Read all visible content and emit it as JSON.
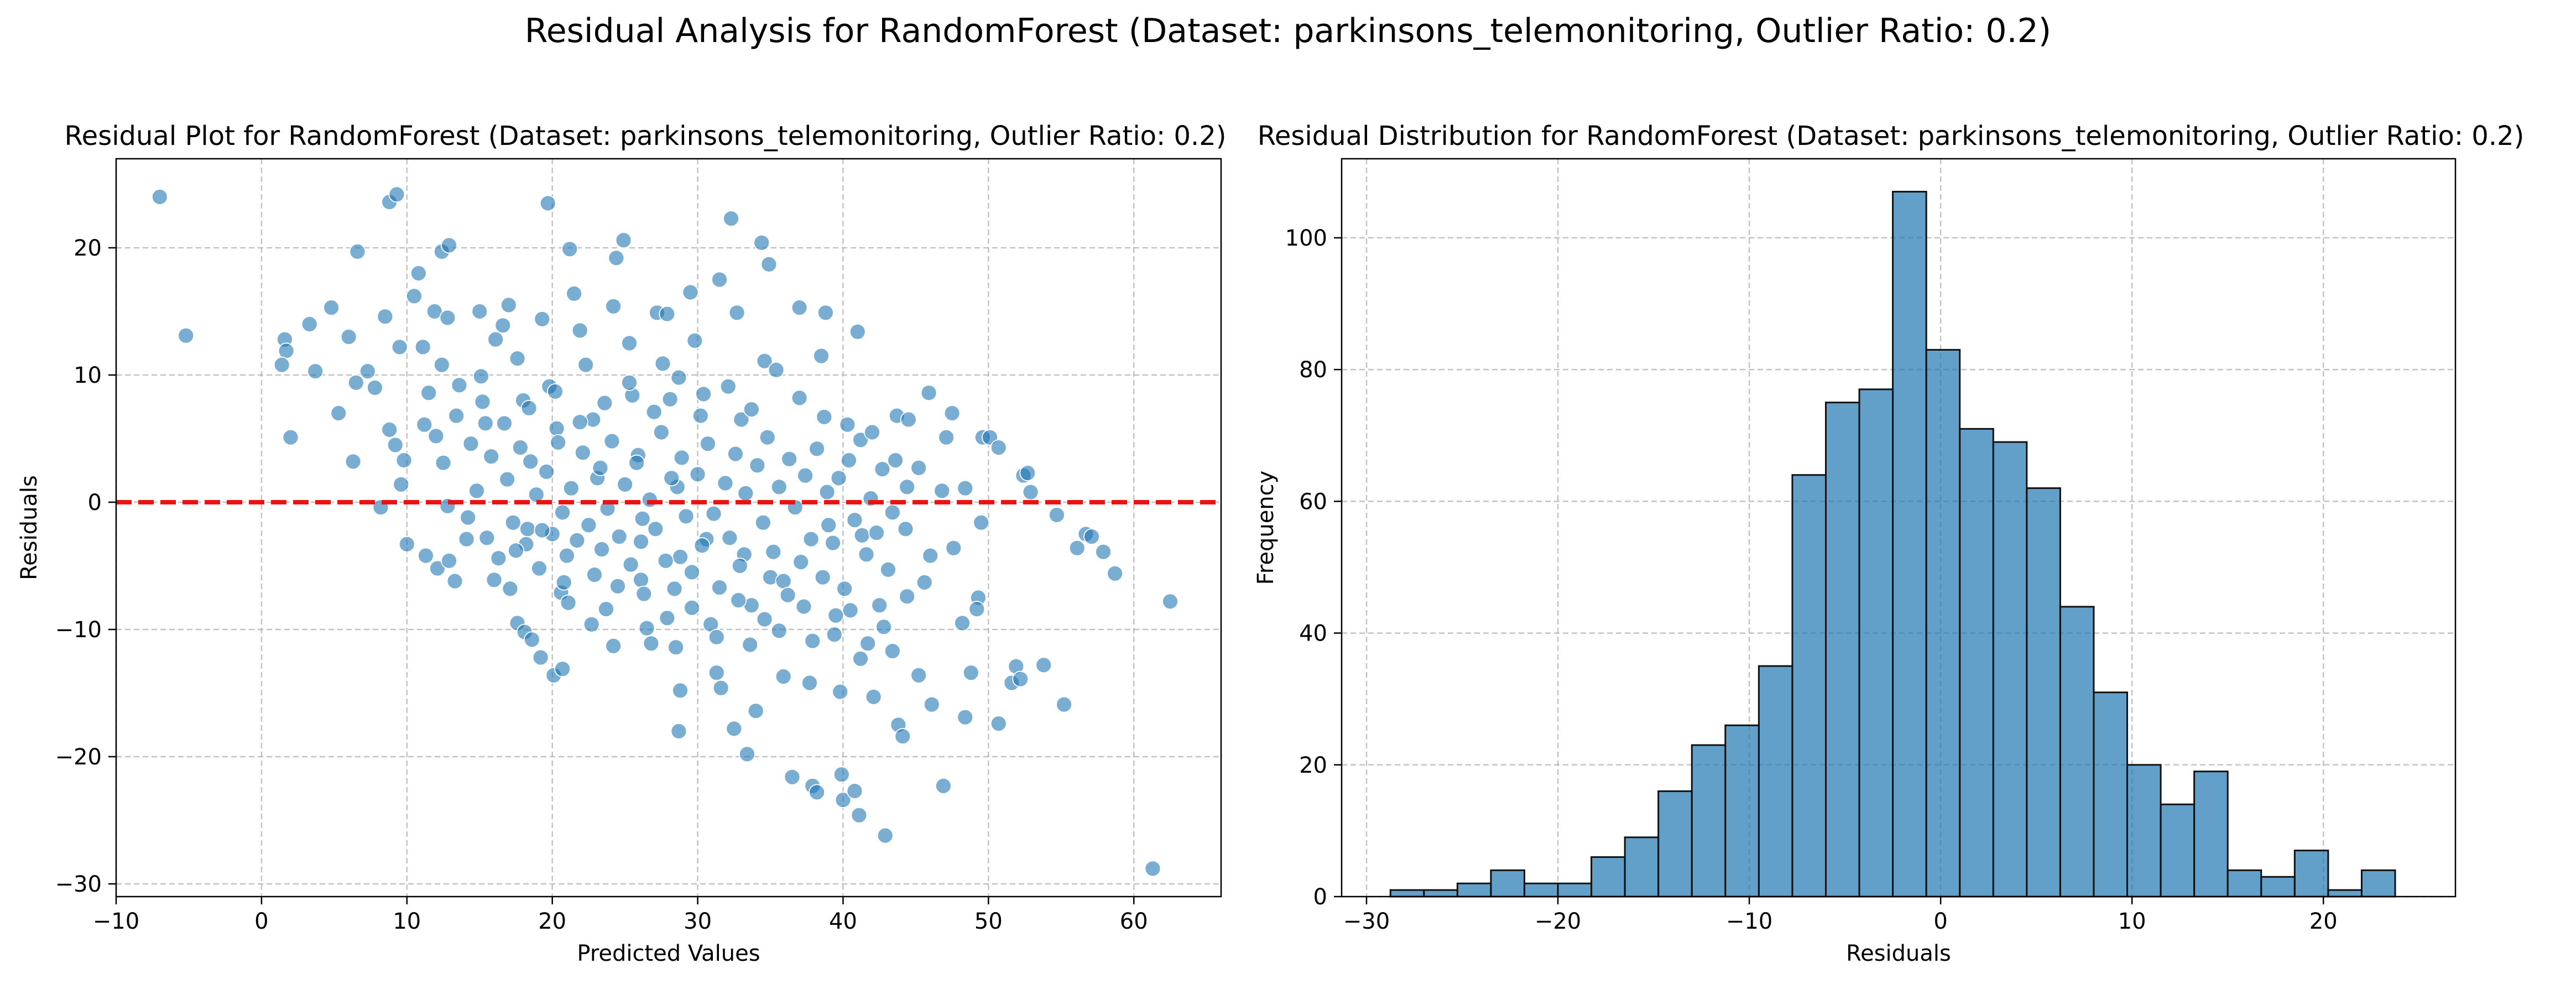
{
  "figure_title": "Residual Analysis for RandomForest (Dataset: parkinsons_telemonitoring, Outlier Ratio: 0.2)",
  "chart_data": [
    {
      "type": "scatter",
      "title": "Residual Plot for RandomForest (Dataset: parkinsons_telemonitoring, Outlier Ratio: 0.2)",
      "xlabel": "Predicted Values",
      "ylabel": "Residuals",
      "xlim": [
        -10,
        66
      ],
      "ylim": [
        -31,
        27
      ],
      "xticks": [
        -10,
        0,
        10,
        20,
        30,
        40,
        50,
        60
      ],
      "yticks": [
        -30,
        -20,
        -10,
        0,
        10,
        20
      ],
      "xtick_labels": [
        "−10",
        "0",
        "10",
        "20",
        "30",
        "40",
        "50",
        "60"
      ],
      "ytick_labels": [
        "−30",
        "−20",
        "−10",
        "0",
        "10",
        "20"
      ],
      "grid": true,
      "reference_line": {
        "y": 0,
        "color": "#ee1111",
        "style": "dashed"
      },
      "color": "#1f77b4",
      "points": [
        [
          -7,
          24
        ],
        [
          -5.2,
          13.1
        ],
        [
          1.6,
          12.8
        ],
        [
          1.7,
          11.9
        ],
        [
          1.4,
          10.8
        ],
        [
          2,
          5.1
        ],
        [
          3.3,
          14
        ],
        [
          3.7,
          10.3
        ],
        [
          4.8,
          15.3
        ],
        [
          5.3,
          7
        ],
        [
          6,
          13
        ],
        [
          6.6,
          19.7
        ],
        [
          6.3,
          3.2
        ],
        [
          6.5,
          9.4
        ],
        [
          7.3,
          10.3
        ],
        [
          7.8,
          9
        ],
        [
          8.5,
          14.6
        ],
        [
          8.8,
          23.6
        ],
        [
          9.3,
          24.2
        ],
        [
          9.5,
          12.2
        ],
        [
          8.8,
          5.7
        ],
        [
          9.2,
          4.5
        ],
        [
          9.6,
          1.4
        ],
        [
          8.2,
          -0.4
        ],
        [
          9.8,
          3.3
        ],
        [
          10.5,
          16.2
        ],
        [
          10.8,
          18
        ],
        [
          11.1,
          12.2
        ],
        [
          11.5,
          8.6
        ],
        [
          11.9,
          15
        ],
        [
          12,
          5.2
        ],
        [
          12.4,
          19.7
        ],
        [
          12.9,
          20.2
        ],
        [
          12.8,
          14.5
        ],
        [
          12.4,
          10.8
        ],
        [
          10,
          -3.3
        ],
        [
          11.3,
          -4.2
        ],
        [
          12.1,
          -5.2
        ],
        [
          12.9,
          -4.6
        ],
        [
          13.3,
          -6.2
        ],
        [
          14.1,
          -2.9
        ],
        [
          15,
          15
        ],
        [
          15.1,
          9.9
        ],
        [
          15.4,
          6.2
        ],
        [
          16.1,
          12.8
        ],
        [
          16.6,
          13.9
        ],
        [
          17,
          15.5
        ],
        [
          17.6,
          11.3
        ],
        [
          18,
          8
        ],
        [
          18.5,
          3.2
        ],
        [
          18.3,
          -2.1
        ],
        [
          17.1,
          -6.8
        ],
        [
          17.6,
          -9.5
        ],
        [
          18.1,
          -10.2
        ],
        [
          18.6,
          -10.8
        ],
        [
          19.2,
          -12.2
        ],
        [
          19.7,
          23.5
        ],
        [
          19.3,
          14.4
        ],
        [
          19.8,
          9.1
        ],
        [
          20.3,
          5.8
        ],
        [
          20.7,
          -0.8
        ],
        [
          21,
          -4.2
        ],
        [
          20.6,
          -7.1
        ],
        [
          20.1,
          -13.6
        ],
        [
          20.7,
          -13.1
        ],
        [
          21.2,
          19.9
        ],
        [
          21.5,
          16.4
        ],
        [
          21.9,
          13.5
        ],
        [
          22.3,
          10.8
        ],
        [
          22.8,
          6.5
        ],
        [
          23.1,
          1.9
        ],
        [
          23.4,
          -3.7
        ],
        [
          23.7,
          -8.4
        ],
        [
          24.2,
          -11.3
        ],
        [
          24.2,
          15.4
        ],
        [
          24.4,
          19.2
        ],
        [
          24.9,
          20.6
        ],
        [
          25.3,
          12.5
        ],
        [
          25.5,
          8.4
        ],
        [
          25.9,
          3.7
        ],
        [
          26.2,
          -1.3
        ],
        [
          26.1,
          -6.1
        ],
        [
          26.5,
          -9.9
        ],
        [
          26.8,
          -11.1
        ],
        [
          27.2,
          14.9
        ],
        [
          27.6,
          10.9
        ],
        [
          27.9,
          14.8
        ],
        [
          28.1,
          8.1
        ],
        [
          28.6,
          1.2
        ],
        [
          28.8,
          -4.3
        ],
        [
          28.5,
          -11.4
        ],
        [
          28.8,
          -14.8
        ],
        [
          28.7,
          -18
        ],
        [
          29.5,
          16.5
        ],
        [
          29.8,
          12.7
        ],
        [
          30.2,
          6.8
        ],
        [
          30.6,
          -2.9
        ],
        [
          30.9,
          -9.6
        ],
        [
          31.3,
          -13.4
        ],
        [
          31.5,
          17.5
        ],
        [
          31.6,
          -14.6
        ],
        [
          32.3,
          22.3
        ],
        [
          32.5,
          -17.8
        ],
        [
          32.7,
          14.9
        ],
        [
          33,
          6.5
        ],
        [
          33.2,
          -4.1
        ],
        [
          33.6,
          -11.2
        ],
        [
          33.4,
          -19.8
        ],
        [
          34,
          -16.4
        ],
        [
          34.4,
          20.4
        ],
        [
          34.6,
          11.1
        ],
        [
          34.9,
          18.7
        ],
        [
          35,
          -5.9
        ],
        [
          35.6,
          -10.1
        ],
        [
          35.9,
          -13.7
        ],
        [
          36.5,
          -21.6
        ],
        [
          37,
          15.3
        ],
        [
          37.3,
          -8.2
        ],
        [
          37.7,
          -14.2
        ],
        [
          37.9,
          -22.3
        ],
        [
          38.2,
          -22.8
        ],
        [
          38.5,
          11.5
        ],
        [
          38.8,
          14.9
        ],
        [
          39,
          -1.8
        ],
        [
          39.4,
          -10.4
        ],
        [
          39.8,
          -14.9
        ],
        [
          39.9,
          -21.4
        ],
        [
          40,
          -23.4
        ],
        [
          40.5,
          -8.5
        ],
        [
          40.8,
          -22.7
        ],
        [
          41.1,
          -24.6
        ],
        [
          41,
          13.4
        ],
        [
          41.3,
          -2.6
        ],
        [
          41.7,
          -11.1
        ],
        [
          42.1,
          -15.3
        ],
        [
          42.5,
          -8.1
        ],
        [
          42.9,
          -26.2
        ],
        [
          43.4,
          -11.7
        ],
        [
          43.8,
          -17.5
        ],
        [
          44.1,
          -18.4
        ],
        [
          44.4,
          1.2
        ],
        [
          44.3,
          -2.1
        ],
        [
          43.7,
          6.8
        ],
        [
          44.5,
          6.5
        ],
        [
          45.2,
          -13.6
        ],
        [
          45.6,
          -6.3
        ],
        [
          45.9,
          8.6
        ],
        [
          46.1,
          -15.9
        ],
        [
          46.9,
          -22.3
        ],
        [
          47.1,
          5.1
        ],
        [
          47.5,
          7
        ],
        [
          48.2,
          -9.5
        ],
        [
          48.4,
          -16.9
        ],
        [
          48.8,
          -13.4
        ],
        [
          49.3,
          -7.5
        ],
        [
          49.5,
          -1.6
        ],
        [
          49.6,
          5.1
        ],
        [
          50.1,
          5.1
        ],
        [
          50.7,
          4.3
        ],
        [
          50.7,
          -17.4
        ],
        [
          51.6,
          -14.2
        ],
        [
          51.9,
          -12.9
        ],
        [
          52.2,
          -13.9
        ],
        [
          52.4,
          2.1
        ],
        [
          52.7,
          2.3
        ],
        [
          52.9,
          0.8
        ],
        [
          53.8,
          -12.8
        ],
        [
          54.7,
          -1
        ],
        [
          55.2,
          -15.9
        ],
        [
          56.1,
          -3.6
        ],
        [
          56.7,
          -2.5
        ],
        [
          57.1,
          -2.7
        ],
        [
          57.9,
          -3.9
        ],
        [
          58.7,
          -5.6
        ],
        [
          61.3,
          -28.8
        ],
        [
          62.5,
          -7.8
        ],
        [
          12.5,
          3.1
        ],
        [
          13.4,
          6.8
        ],
        [
          14.2,
          -1.2
        ],
        [
          14.8,
          0.9
        ],
        [
          15.5,
          -2.8
        ],
        [
          15.8,
          3.6
        ],
        [
          16.3,
          -4.4
        ],
        [
          16.9,
          1.8
        ],
        [
          17.3,
          -1.6
        ],
        [
          17.8,
          4.3
        ],
        [
          18.2,
          -3.3
        ],
        [
          18.9,
          0.6
        ],
        [
          19.1,
          -5.2
        ],
        [
          19.6,
          2.4
        ],
        [
          20,
          -2.5
        ],
        [
          20.4,
          4.7
        ],
        [
          20.8,
          -6.3
        ],
        [
          21.3,
          1.1
        ],
        [
          21.7,
          -3
        ],
        [
          22.1,
          3.9
        ],
        [
          22.5,
          -1.8
        ],
        [
          22.9,
          -5.7
        ],
        [
          23.3,
          2.7
        ],
        [
          23.8,
          -0.5
        ],
        [
          24.1,
          4.8
        ],
        [
          24.6,
          -2.7
        ],
        [
          25,
          1.4
        ],
        [
          25.4,
          -4.9
        ],
        [
          25.8,
          3.1
        ],
        [
          26.3,
          -7.2
        ],
        [
          26.7,
          0.2
        ],
        [
          27.1,
          -2.1
        ],
        [
          27.5,
          5.5
        ],
        [
          27.8,
          -4.6
        ],
        [
          28.2,
          1.9
        ],
        [
          28.4,
          -6.8
        ],
        [
          28.9,
          3.5
        ],
        [
          29.2,
          -1.1
        ],
        [
          29.6,
          -5.5
        ],
        [
          30,
          2.2
        ],
        [
          30.3,
          -3.4
        ],
        [
          30.7,
          4.6
        ],
        [
          31.1,
          -0.9
        ],
        [
          31.5,
          -6.7
        ],
        [
          31.9,
          1.5
        ],
        [
          32.2,
          -2.8
        ],
        [
          32.6,
          3.8
        ],
        [
          32.9,
          -5
        ],
        [
          33.3,
          0.7
        ],
        [
          33.7,
          -8.1
        ],
        [
          34.1,
          2.9
        ],
        [
          34.5,
          -1.6
        ],
        [
          34.8,
          5.1
        ],
        [
          35.2,
          -3.9
        ],
        [
          35.6,
          1.2
        ],
        [
          35.9,
          -6.2
        ],
        [
          36.3,
          3.4
        ],
        [
          36.7,
          -0.4
        ],
        [
          37.1,
          -4.7
        ],
        [
          37.4,
          2.1
        ],
        [
          37.8,
          -2.9
        ],
        [
          38.2,
          4.2
        ],
        [
          38.6,
          -5.9
        ],
        [
          38.9,
          0.8
        ],
        [
          39.3,
          -3.2
        ],
        [
          39.7,
          1.9
        ],
        [
          40.1,
          -6.8
        ],
        [
          40.4,
          3.3
        ],
        [
          40.8,
          -1.4
        ],
        [
          41.2,
          4.9
        ],
        [
          41.6,
          -4.1
        ],
        [
          41.9,
          0.3
        ],
        [
          42.3,
          -2.4
        ],
        [
          42.7,
          2.6
        ],
        [
          43.1,
          -5.3
        ],
        [
          43.4,
          -0.8
        ],
        [
          11.2,
          6.1
        ],
        [
          12.8,
          -0.3
        ],
        [
          13.6,
          9.2
        ],
        [
          14.4,
          4.6
        ],
        [
          15.2,
          7.9
        ],
        [
          16.0,
          -6.1
        ],
        [
          16.7,
          6.2
        ],
        [
          17.5,
          -3.8
        ],
        [
          18.4,
          7.4
        ],
        [
          19.3,
          -2.2
        ],
        [
          20.2,
          8.7
        ],
        [
          21.1,
          -7.9
        ],
        [
          21.9,
          6.3
        ],
        [
          22.7,
          -9.6
        ],
        [
          23.6,
          7.8
        ],
        [
          24.5,
          -6.6
        ],
        [
          25.3,
          9.4
        ],
        [
          26.1,
          -3.1
        ],
        [
          27.0,
          7.1
        ],
        [
          27.9,
          -9.1
        ],
        [
          28.7,
          9.8
        ],
        [
          29.6,
          -8.3
        ],
        [
          30.4,
          8.5
        ],
        [
          31.3,
          -10.6
        ],
        [
          32.1,
          9.1
        ],
        [
          32.8,
          -7.7
        ],
        [
          33.7,
          7.3
        ],
        [
          34.6,
          -9.2
        ],
        [
          35.4,
          10.4
        ],
        [
          36.2,
          -7.3
        ],
        [
          37.0,
          8.2
        ],
        [
          37.9,
          -10.9
        ],
        [
          38.7,
          6.7
        ],
        [
          39.5,
          -8.9
        ],
        [
          40.3,
          6.1
        ],
        [
          41.2,
          -12.3
        ],
        [
          42.0,
          5.5
        ],
        [
          42.8,
          -9.8
        ],
        [
          43.6,
          3.3
        ],
        [
          44.4,
          -7.4
        ],
        [
          45.2,
          2.7
        ],
        [
          46.0,
          -4.2
        ],
        [
          46.8,
          0.9
        ],
        [
          47.6,
          -3.6
        ],
        [
          48.4,
          1.1
        ],
        [
          49.2,
          -8.4
        ]
      ]
    },
    {
      "type": "bar",
      "subtype": "histogram",
      "title": "Residual Distribution for RandomForest (Dataset: parkinsons_telemonitoring, Outlier Ratio: 0.2)",
      "xlabel": "Residuals",
      "ylabel": "Frequency",
      "xlim": [
        -31.3,
        26.9
      ],
      "ylim": [
        0,
        112
      ],
      "xticks": [
        -30,
        -20,
        -10,
        0,
        10,
        20
      ],
      "yticks": [
        0,
        20,
        40,
        60,
        80,
        100
      ],
      "xtick_labels": [
        "−30",
        "−20",
        "−10",
        "0",
        "10",
        "20"
      ],
      "ytick_labels": [
        "0",
        "20",
        "40",
        "60",
        "80",
        "100"
      ],
      "grid": true,
      "color": "#1f77b4",
      "bin_start": -28.75,
      "bin_width": 1.75,
      "values": [
        1,
        1,
        2,
        4,
        2,
        2,
        6,
        9,
        16,
        23,
        26,
        35,
        64,
        75,
        77,
        107,
        83,
        71,
        69,
        62,
        44,
        31,
        20,
        14,
        19,
        4,
        3,
        7,
        1,
        4
      ]
    }
  ]
}
